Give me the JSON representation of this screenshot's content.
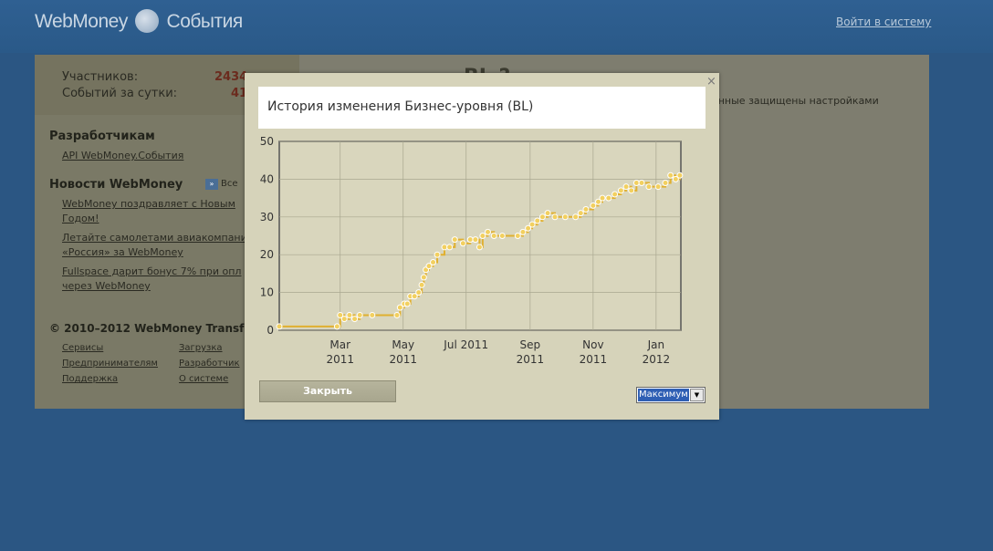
{
  "header": {
    "logo_left": "WebMoney",
    "logo_right": "События",
    "login_link": "Войти в систему"
  },
  "sidebar": {
    "stats": [
      {
        "label": "Участников:",
        "value": "2434"
      },
      {
        "label": "Событий за сутки:",
        "value": "41"
      }
    ],
    "dev_heading": "Разработчикам",
    "dev_link": "API WebMoney.События",
    "news_heading": "Новости WebMoney",
    "news_all": "Все",
    "news": [
      {
        "line1": "WebMoney поздравляет с Новым",
        "line2": "Годом!"
      },
      {
        "line1": "Летайте самолетами авиакомпании",
        "line2": "«Россия» за WebMoney"
      },
      {
        "line1": "Fullspace дарит бонус 7% при опл",
        "line2": "через WebMoney"
      }
    ],
    "copyright": "© 2010–2012 WebMoney Transfe",
    "footer_links": [
      {
        "label": "Сервисы"
      },
      {
        "label": "Загрузка"
      },
      {
        "label": "Предпринимателям"
      },
      {
        "label": "Разработчик"
      },
      {
        "label": "Поддержка"
      },
      {
        "label": "О системе"
      }
    ]
  },
  "main": {
    "partial_heading": "BL ?",
    "partial_text": "анные защищены настройками"
  },
  "modal": {
    "close_glyph": "×",
    "title": "История изменения Бизнес-уровня (BL)",
    "close_button": "Закрыть",
    "range_select": "Максимум"
  },
  "chart_data": {
    "type": "line",
    "title": "",
    "xlabel": "",
    "ylabel": "",
    "ylim": [
      0,
      50
    ],
    "yticks": [
      0,
      10,
      20,
      30,
      40,
      50
    ],
    "xlim": [
      "2011-01-01",
      "2012-01-25"
    ],
    "xticks": [
      {
        "date": "2011-03-01",
        "line1": "Mar",
        "line2": "2011"
      },
      {
        "date": "2011-05-01",
        "line1": "May",
        "line2": "2011"
      },
      {
        "date": "2011-07-01",
        "line1": "Jul 2011",
        "line2": ""
      },
      {
        "date": "2011-09-01",
        "line1": "Sep",
        "line2": "2011"
      },
      {
        "date": "2011-11-01",
        "line1": "Nov",
        "line2": "2011"
      },
      {
        "date": "2012-01-01",
        "line1": "Jan",
        "line2": "2012"
      }
    ],
    "grid": true,
    "line_color": "#e0b030",
    "point_color": "#f2d060",
    "series": [
      {
        "points": [
          [
            "2011-01-01",
            1
          ],
          [
            "2011-02-26",
            1
          ],
          [
            "2011-03-01",
            4
          ],
          [
            "2011-03-05",
            3
          ],
          [
            "2011-03-10",
            4
          ],
          [
            "2011-03-15",
            3
          ],
          [
            "2011-03-20",
            4
          ],
          [
            "2011-04-01",
            4
          ],
          [
            "2011-04-25",
            4
          ],
          [
            "2011-04-28",
            6
          ],
          [
            "2011-05-02",
            7
          ],
          [
            "2011-05-05",
            7
          ],
          [
            "2011-05-08",
            9
          ],
          [
            "2011-05-12",
            9
          ],
          [
            "2011-05-16",
            10
          ],
          [
            "2011-05-19",
            12
          ],
          [
            "2011-05-21",
            14
          ],
          [
            "2011-05-23",
            16
          ],
          [
            "2011-05-26",
            17
          ],
          [
            "2011-05-30",
            18
          ],
          [
            "2011-06-03",
            20
          ],
          [
            "2011-06-10",
            22
          ],
          [
            "2011-06-15",
            22
          ],
          [
            "2011-06-20",
            24
          ],
          [
            "2011-06-28",
            23
          ],
          [
            "2011-07-05",
            24
          ],
          [
            "2011-07-10",
            24
          ],
          [
            "2011-07-14",
            22
          ],
          [
            "2011-07-17",
            25
          ],
          [
            "2011-07-22",
            26
          ],
          [
            "2011-07-28",
            25
          ],
          [
            "2011-08-05",
            25
          ],
          [
            "2011-08-20",
            25
          ],
          [
            "2011-08-25",
            26
          ],
          [
            "2011-08-30",
            27
          ],
          [
            "2011-09-03",
            28
          ],
          [
            "2011-09-08",
            29
          ],
          [
            "2011-09-13",
            30
          ],
          [
            "2011-09-18",
            31
          ],
          [
            "2011-09-25",
            30
          ],
          [
            "2011-10-05",
            30
          ],
          [
            "2011-10-15",
            30
          ],
          [
            "2011-10-20",
            31
          ],
          [
            "2011-10-25",
            32
          ],
          [
            "2011-11-01",
            33
          ],
          [
            "2011-11-06",
            34
          ],
          [
            "2011-11-10",
            35
          ],
          [
            "2011-11-16",
            35
          ],
          [
            "2011-11-22",
            36
          ],
          [
            "2011-11-28",
            37
          ],
          [
            "2011-12-03",
            38
          ],
          [
            "2011-12-08",
            37
          ],
          [
            "2011-12-13",
            39
          ],
          [
            "2011-12-18",
            39
          ],
          [
            "2011-12-25",
            38
          ],
          [
            "2012-01-03",
            38
          ],
          [
            "2012-01-10",
            39
          ],
          [
            "2012-01-15",
            41
          ],
          [
            "2012-01-20",
            40
          ],
          [
            "2012-01-24",
            41
          ]
        ]
      }
    ]
  }
}
